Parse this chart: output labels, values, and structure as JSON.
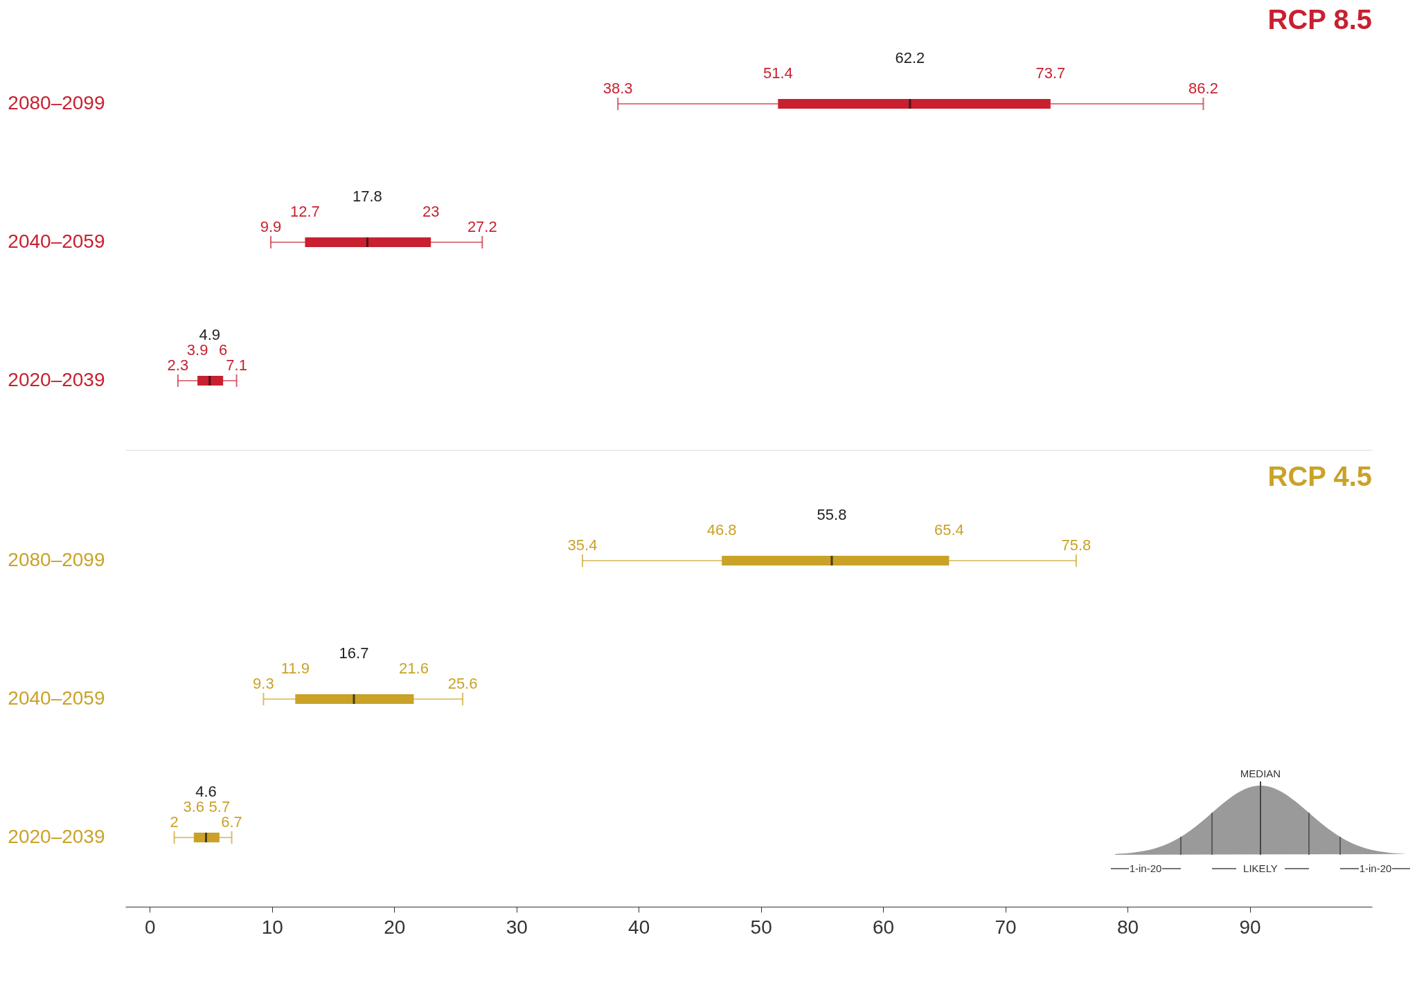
{
  "chart_data": [
    {
      "type": "box",
      "title": "RCP 8.5",
      "orientation": "horizontal",
      "categories": [
        "2080–2099",
        "2040–2059",
        "2020–2039"
      ],
      "series": [
        {
          "color": "#c8202f",
          "boxes": [
            {
              "low": 38.3,
              "q1": 51.4,
              "median": 62.2,
              "q3": 73.7,
              "high": 86.2
            },
            {
              "low": 9.9,
              "q1": 12.7,
              "median": 17.8,
              "q3": 23,
              "high": 27.2
            },
            {
              "low": 2.3,
              "q1": 3.9,
              "median": 4.9,
              "q3": 6,
              "high": 7.1
            }
          ]
        }
      ],
      "xlim": [
        -2,
        100
      ],
      "xticks": [
        0,
        10,
        20,
        30,
        40,
        50,
        60,
        70,
        80,
        90
      ],
      "tick_labels": "y",
      "annotations": [
        {
          "text": "38.3",
          "x": 38.3,
          "y": "2080–2099"
        },
        {
          "text": "51.4",
          "x": 51.4,
          "y": "2080–2099"
        },
        {
          "text": "62.2",
          "x": 62.2,
          "y": "2080–2099"
        },
        {
          "text": "73.7",
          "x": 73.7,
          "y": "2080–2099"
        },
        {
          "text": "86.2",
          "x": 86.2,
          "y": "2080–2099"
        },
        {
          "text": "9.9",
          "x": 9.9,
          "y": "2040–2059"
        },
        {
          "text": "12.7",
          "x": 12.7,
          "y": "2040–2059"
        },
        {
          "text": "17.8",
          "x": 17.8,
          "y": "2040–2059"
        },
        {
          "text": "23",
          "x": 23,
          "y": "2040–2059"
        },
        {
          "text": "27.2",
          "x": 27.2,
          "y": "2040–2059"
        },
        {
          "text": "2.3",
          "x": 2.3,
          "y": "2020–2039"
        },
        {
          "text": "3.9",
          "x": 3.9,
          "y": "2020–2039"
        },
        {
          "text": "4.9",
          "x": 4.9,
          "y": "2020–2039"
        },
        {
          "text": "6",
          "x": 6,
          "y": "2020–2039"
        },
        {
          "text": "7.1",
          "x": 7.1,
          "y": "2020–2039"
        }
      ]
    },
    {
      "type": "box",
      "title": "RCP 4.5",
      "orientation": "horizontal",
      "categories": [
        "2080–2099",
        "2040–2059",
        "2020–2039"
      ],
      "series": [
        {
          "color": "#c9a227",
          "boxes": [
            {
              "low": 35.4,
              "q1": 46.8,
              "median": 55.8,
              "q3": 65.4,
              "high": 75.8
            },
            {
              "low": 9.3,
              "q1": 11.9,
              "median": 16.7,
              "q3": 21.6,
              "high": 25.6
            },
            {
              "low": 2,
              "q1": 3.6,
              "median": 4.6,
              "q3": 5.7,
              "high": 6.7
            }
          ]
        }
      ],
      "xlim": [
        -2,
        100
      ],
      "xticks": [
        0,
        10,
        20,
        30,
        40,
        50,
        60,
        70,
        80,
        90
      ],
      "annotations": [
        {
          "text": "35.4",
          "x": 35.4,
          "y": "2080–2099"
        },
        {
          "text": "46.8",
          "x": 46.8,
          "y": "2080–2099"
        },
        {
          "text": "55.8",
          "x": 55.8,
          "y": "2080–2099"
        },
        {
          "text": "65.4",
          "x": 65.4,
          "y": "2080–2099"
        },
        {
          "text": "75.8",
          "x": 75.8,
          "y": "2080–2099"
        },
        {
          "text": "9.3",
          "x": 9.3,
          "y": "2040–2059"
        },
        {
          "text": "11.9",
          "x": 11.9,
          "y": "2040–2059"
        },
        {
          "text": "16.7",
          "x": 16.7,
          "y": "2040–2059"
        },
        {
          "text": "21.6",
          "x": 21.6,
          "y": "2040–2059"
        },
        {
          "text": "25.6",
          "x": 25.6,
          "y": "2040–2059"
        },
        {
          "text": "2",
          "x": 2,
          "y": "2020–2039"
        },
        {
          "text": "3.6",
          "x": 3.6,
          "y": "2020–2039"
        },
        {
          "text": "4.6",
          "x": 4.6,
          "y": "2020–2039"
        },
        {
          "text": "5.7",
          "x": 5.7,
          "y": "2020–2039"
        },
        {
          "text": "6.7",
          "x": 6.7,
          "y": "2020–2039"
        },
        "MEDIAN",
        "1-in-20",
        "LIKELY",
        "1-in-20"
      ]
    }
  ]
}
